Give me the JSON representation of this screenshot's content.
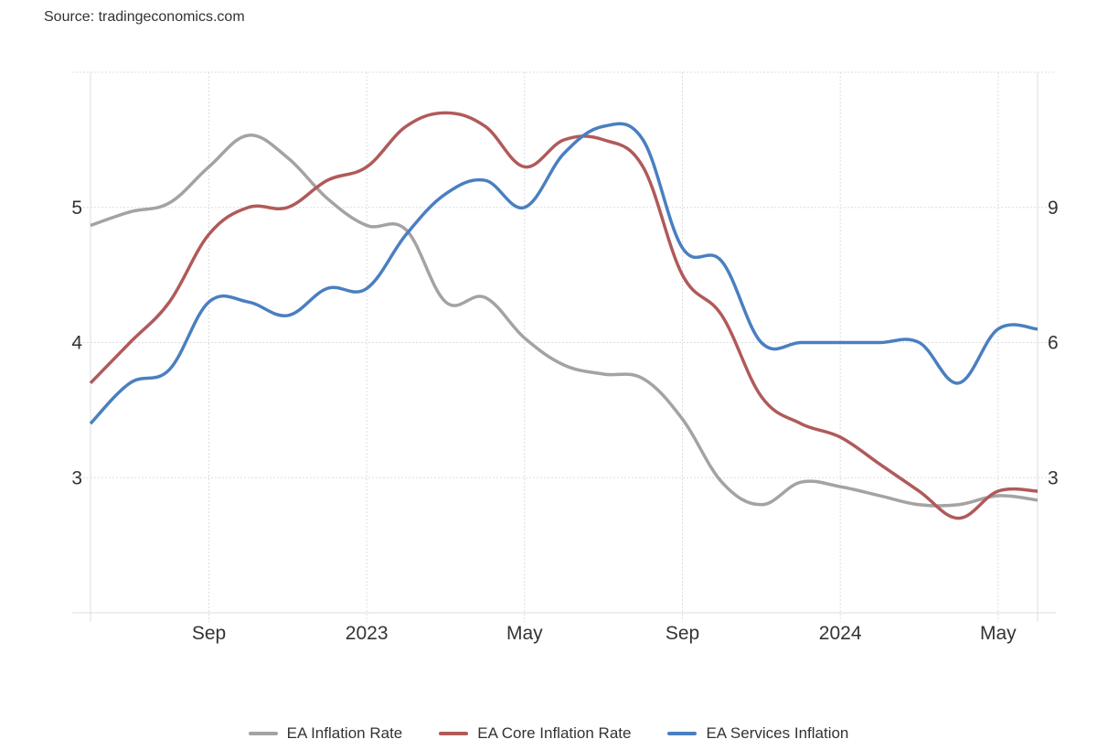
{
  "source": "Source: tradingeconomics.com",
  "chart_data": {
    "type": "line",
    "title": "",
    "x": [
      "2022-06",
      "2022-07",
      "2022-08",
      "2022-09",
      "2022-10",
      "2022-11",
      "2022-12",
      "2023-01",
      "2023-02",
      "2023-03",
      "2023-04",
      "2023-05",
      "2023-06",
      "2023-07",
      "2023-08",
      "2023-09",
      "2023-10",
      "2023-11",
      "2023-12",
      "2024-01",
      "2024-02",
      "2024-03",
      "2024-04",
      "2024-05",
      "2024-06"
    ],
    "x_tick_labels": [
      {
        "label": "Sep",
        "index": 3
      },
      {
        "label": "2023",
        "index": 7
      },
      {
        "label": "May",
        "index": 11
      },
      {
        "label": "Sep",
        "index": 15
      },
      {
        "label": "2024",
        "index": 19
      },
      {
        "label": "May",
        "index": 23
      }
    ],
    "y_left": {
      "range": [
        2,
        6
      ],
      "ticks": [
        3,
        4,
        5
      ]
    },
    "y_right": {
      "range": [
        0,
        12
      ],
      "ticks": [
        3,
        6,
        9
      ]
    },
    "grid": true,
    "legend_position": "bottom",
    "series": [
      {
        "name": "EA Inflation Rate",
        "axis": "right",
        "color": "#a3a3a3",
        "values": [
          8.6,
          8.9,
          9.1,
          9.9,
          10.6,
          10.1,
          9.2,
          8.6,
          8.5,
          6.9,
          7.0,
          6.1,
          5.5,
          5.3,
          5.2,
          4.3,
          2.9,
          2.4,
          2.9,
          2.8,
          2.6,
          2.4,
          2.4,
          2.6,
          2.5
        ]
      },
      {
        "name": "EA Core Inflation Rate",
        "axis": "left",
        "color": "#b05a5a",
        "values": [
          3.7,
          4.0,
          4.3,
          4.8,
          5.0,
          5.0,
          5.2,
          5.3,
          5.6,
          5.7,
          5.6,
          5.3,
          5.5,
          5.5,
          5.3,
          4.5,
          4.2,
          3.6,
          3.4,
          3.3,
          3.1,
          2.9,
          2.7,
          2.9,
          2.9
        ]
      },
      {
        "name": "EA Services Inflation",
        "axis": "left",
        "color": "#4a7fc0",
        "values": [
          3.4,
          3.7,
          3.8,
          4.3,
          4.3,
          4.2,
          4.4,
          4.4,
          4.8,
          5.1,
          5.2,
          5.0,
          5.4,
          5.6,
          5.5,
          4.7,
          4.6,
          4.0,
          4.0,
          4.0,
          4.0,
          4.0,
          3.7,
          4.1,
          4.1
        ]
      }
    ]
  }
}
